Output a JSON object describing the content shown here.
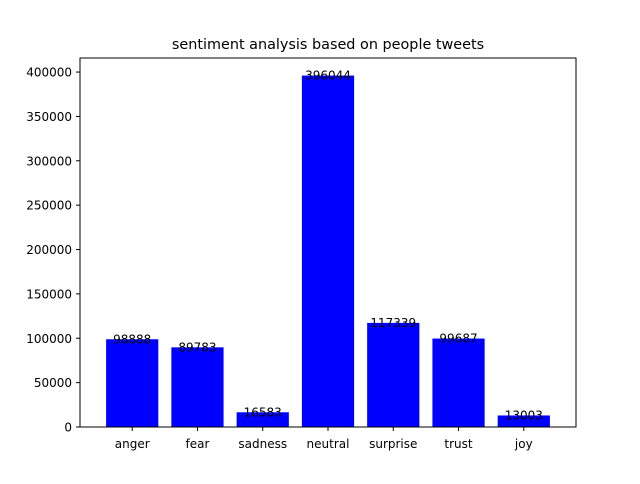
{
  "chart_data": {
    "type": "bar",
    "title": "sentiment analysis based on people tweets",
    "xlabel": "",
    "ylabel": "",
    "categories": [
      "anger",
      "fear",
      "sadness",
      "neutral",
      "surprise",
      "trust",
      "joy"
    ],
    "values": [
      98888,
      89783,
      16583,
      396044,
      117339,
      99687,
      13003
    ],
    "value_labels": [
      "98888",
      "89783",
      "16583",
      "396044",
      "117339",
      "99687",
      "13003"
    ],
    "ylim": [
      0,
      415846
    ],
    "yticks": [
      0,
      50000,
      100000,
      150000,
      200000,
      250000,
      300000,
      350000,
      400000
    ],
    "ytick_labels": [
      "0",
      "50000",
      "100000",
      "150000",
      "200000",
      "250000",
      "300000",
      "350000",
      "400000"
    ],
    "grid": false,
    "legend": "none",
    "bar_color": "#0000ff"
  }
}
